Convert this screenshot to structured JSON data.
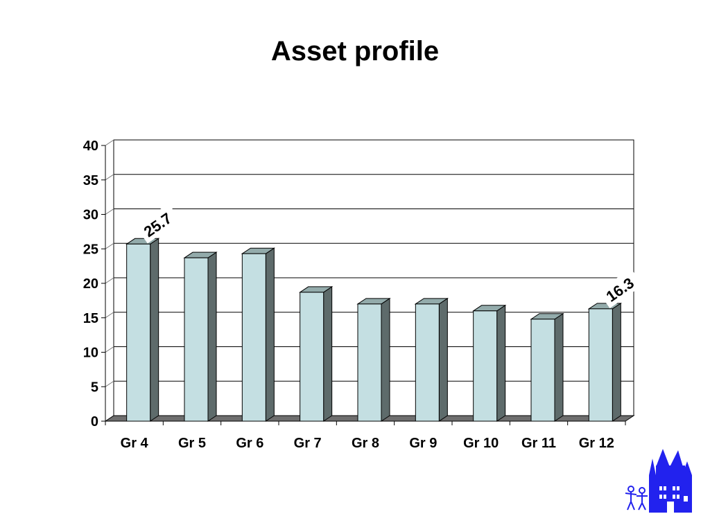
{
  "title": "Asset profile",
  "chart_data": {
    "type": "bar",
    "title": "Asset profile",
    "categories": [
      "Gr 4",
      "Gr 5",
      "Gr 6",
      "Gr 7",
      "Gr 8",
      "Gr 9",
      "Gr 10",
      "Gr 11",
      "Gr 12"
    ],
    "values": [
      25.7,
      23.7,
      24.3,
      18.7,
      17.0,
      17.0,
      16.0,
      14.8,
      16.3
    ],
    "data_labels": [
      {
        "category": "Gr 4",
        "text": "25.7"
      },
      {
        "category": "Gr 12",
        "text": "16.3"
      }
    ],
    "ylim": [
      0,
      40
    ],
    "yticks": [
      0,
      5,
      10,
      15,
      20,
      25,
      30,
      35,
      40
    ],
    "xlabel": "",
    "ylabel": "",
    "grid": true,
    "legend": "none",
    "style": "3d-column"
  },
  "colors": {
    "bar_front": "#c4dfe2",
    "bar_side": "#5e6b6b",
    "bar_top": "#93abab",
    "floor": "#6e6e6e",
    "gridline": "#000000",
    "logo": "#2222ee"
  },
  "logo": {
    "icon": "castle-with-figures-icon"
  }
}
